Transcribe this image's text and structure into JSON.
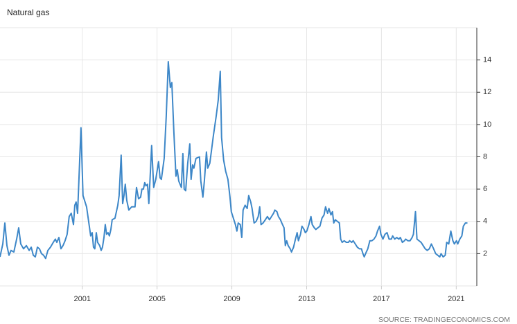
{
  "chart_data": {
    "type": "line",
    "title": "Natural gas",
    "source": "SOURCE: TRADINGECONOMICS.COM",
    "x": [
      1996.6,
      1996.75,
      1996.86,
      1996.97,
      1997.08,
      1997.19,
      1997.34,
      1997.49,
      1997.6,
      1997.71,
      1997.86,
      1998.01,
      1998.16,
      1998.27,
      1998.38,
      1998.49,
      1998.6,
      1998.71,
      1998.82,
      1998.93,
      1999.04,
      1999.16,
      1999.3,
      1999.45,
      1999.56,
      1999.64,
      1999.75,
      1999.86,
      1999.97,
      2000.08,
      2000.19,
      2000.3,
      2000.41,
      2000.53,
      2000.6,
      2000.67,
      2000.75,
      2000.93,
      2001.04,
      2001.23,
      2001.34,
      2001.45,
      2001.53,
      2001.6,
      2001.67,
      2001.75,
      2001.82,
      2001.93,
      2002.01,
      2002.08,
      2002.16,
      2002.23,
      2002.3,
      2002.38,
      2002.45,
      2002.53,
      2002.6,
      2002.75,
      2002.9,
      2002.97,
      2003.08,
      2003.16,
      2003.23,
      2003.3,
      2003.38,
      2003.49,
      2003.64,
      2003.82,
      2003.9,
      2004.01,
      2004.12,
      2004.19,
      2004.27,
      2004.34,
      2004.41,
      2004.49,
      2004.56,
      2004.64,
      2004.71,
      2004.82,
      2004.93,
      2005.08,
      2005.16,
      2005.23,
      2005.38,
      2005.49,
      2005.6,
      2005.71,
      2005.79,
      2005.9,
      2006.01,
      2006.08,
      2006.16,
      2006.3,
      2006.38,
      2006.45,
      2006.53,
      2006.64,
      2006.75,
      2006.82,
      2006.9,
      2006.97,
      2007.08,
      2007.27,
      2007.34,
      2007.45,
      2007.53,
      2007.64,
      2007.71,
      2007.82,
      2007.9,
      2008.01,
      2008.16,
      2008.27,
      2008.38,
      2008.45,
      2008.56,
      2008.67,
      2008.79,
      2008.9,
      2008.97,
      2009.08,
      2009.19,
      2009.27,
      2009.34,
      2009.45,
      2009.53,
      2009.6,
      2009.71,
      2009.82,
      2009.9,
      2010.01,
      2010.08,
      2010.19,
      2010.3,
      2010.41,
      2010.49,
      2010.56,
      2010.67,
      2010.79,
      2010.9,
      2011.01,
      2011.12,
      2011.23,
      2011.3,
      2011.41,
      2011.49,
      2011.6,
      2011.67,
      2011.79,
      2011.86,
      2011.93,
      2012.01,
      2012.12,
      2012.19,
      2012.3,
      2012.38,
      2012.49,
      2012.56,
      2012.67,
      2012.75,
      2012.86,
      2012.93,
      2013.01,
      2013.12,
      2013.23,
      2013.3,
      2013.41,
      2013.49,
      2013.6,
      2013.71,
      2013.82,
      2013.93,
      2014.01,
      2014.12,
      2014.19,
      2014.3,
      2014.38,
      2014.45,
      2014.53,
      2014.64,
      2014.75,
      2014.82,
      2014.9,
      2015.01,
      2015.12,
      2015.23,
      2015.3,
      2015.41,
      2015.49,
      2015.6,
      2015.71,
      2015.82,
      2015.93,
      2016.01,
      2016.08,
      2016.19,
      2016.27,
      2016.38,
      2016.49,
      2016.6,
      2016.71,
      2016.79,
      2016.9,
      2016.97,
      2017.08,
      2017.19,
      2017.3,
      2017.41,
      2017.53,
      2017.6,
      2017.71,
      2017.82,
      2017.93,
      2018.01,
      2018.12,
      2018.23,
      2018.3,
      2018.41,
      2018.53,
      2018.64,
      2018.71,
      2018.82,
      2018.9,
      2019.01,
      2019.12,
      2019.23,
      2019.34,
      2019.45,
      2019.56,
      2019.67,
      2019.79,
      2019.9,
      2020.01,
      2020.12,
      2020.19,
      2020.3,
      2020.41,
      2020.49,
      2020.6,
      2020.71,
      2020.82,
      2020.9,
      2021.01,
      2021.08,
      2021.19,
      2021.3,
      2021.38,
      2021.49,
      2021.6
    ],
    "series": [
      {
        "name": "Natural gas",
        "color": "#3d87c8",
        "values": [
          1.8,
          2.6,
          3.9,
          2.5,
          1.9,
          2.2,
          2.1,
          2.9,
          3.6,
          2.6,
          2.3,
          2.5,
          2.2,
          2.4,
          1.9,
          1.8,
          2.4,
          2.3,
          2.0,
          1.9,
          1.7,
          2.2,
          2.4,
          2.7,
          2.9,
          2.7,
          3.0,
          2.3,
          2.5,
          2.8,
          3.2,
          4.3,
          4.5,
          3.8,
          5.0,
          5.2,
          4.5,
          9.8,
          5.6,
          4.9,
          4.0,
          3.1,
          3.3,
          2.4,
          2.3,
          3.3,
          2.7,
          2.5,
          2.2,
          2.4,
          3.0,
          3.8,
          3.2,
          3.3,
          3.1,
          3.5,
          4.1,
          4.2,
          5.0,
          5.6,
          8.1,
          5.1,
          5.6,
          6.3,
          5.3,
          4.7,
          4.9,
          4.9,
          6.1,
          5.4,
          5.5,
          6.0,
          6.0,
          6.4,
          6.2,
          6.3,
          5.1,
          7.0,
          8.7,
          6.1,
          6.6,
          7.7,
          6.7,
          6.6,
          7.9,
          10.5,
          13.9,
          12.3,
          12.6,
          9.5,
          6.8,
          7.2,
          6.5,
          6.1,
          8.2,
          6.0,
          5.9,
          7.6,
          8.8,
          6.6,
          7.5,
          7.3,
          7.9,
          8.0,
          6.5,
          5.5,
          6.5,
          8.3,
          7.3,
          7.6,
          8.3,
          9.3,
          10.5,
          11.5,
          13.3,
          9.2,
          7.8,
          7.1,
          6.6,
          5.5,
          4.6,
          4.2,
          3.8,
          3.4,
          3.9,
          3.8,
          3.0,
          4.7,
          5.0,
          4.8,
          5.6,
          5.2,
          4.8,
          3.9,
          4.0,
          4.3,
          4.9,
          3.8,
          3.9,
          4.1,
          4.3,
          4.1,
          4.3,
          4.5,
          4.7,
          4.6,
          4.3,
          4.1,
          3.9,
          3.6,
          2.5,
          2.8,
          2.5,
          2.3,
          2.1,
          2.4,
          2.8,
          3.3,
          2.8,
          3.2,
          3.7,
          3.5,
          3.3,
          3.4,
          3.8,
          4.3,
          3.8,
          3.6,
          3.5,
          3.6,
          3.7,
          4.2,
          4.4,
          4.9,
          4.5,
          4.8,
          4.4,
          4.6,
          3.9,
          4.1,
          4.0,
          3.9,
          2.9,
          2.7,
          2.8,
          2.7,
          2.7,
          2.8,
          2.7,
          2.8,
          2.6,
          2.4,
          2.3,
          2.3,
          2.0,
          1.8,
          2.1,
          2.3,
          2.8,
          2.8,
          2.9,
          3.1,
          3.4,
          3.7,
          3.2,
          2.9,
          3.2,
          3.3,
          2.9,
          2.9,
          3.1,
          2.9,
          3.0,
          2.9,
          3.0,
          2.7,
          2.8,
          2.9,
          2.8,
          2.8,
          3.0,
          3.2,
          4.6,
          2.9,
          2.8,
          2.7,
          2.5,
          2.3,
          2.2,
          2.3,
          2.6,
          2.3,
          2.0,
          1.9,
          1.8,
          2.0,
          1.8,
          1.9,
          2.7,
          2.6,
          3.4,
          2.8,
          2.6,
          2.8,
          2.6,
          2.9,
          3.1,
          3.7,
          3.9,
          3.9
        ]
      }
    ],
    "xlim": [
      1996.6,
      2022.1
    ],
    "xticks": [
      2001,
      2005,
      2009,
      2013,
      2017,
      2021
    ],
    "ylim": [
      0,
      16
    ],
    "yticks": [
      2,
      4,
      6,
      8,
      10,
      12,
      14
    ],
    "grid": true
  }
}
